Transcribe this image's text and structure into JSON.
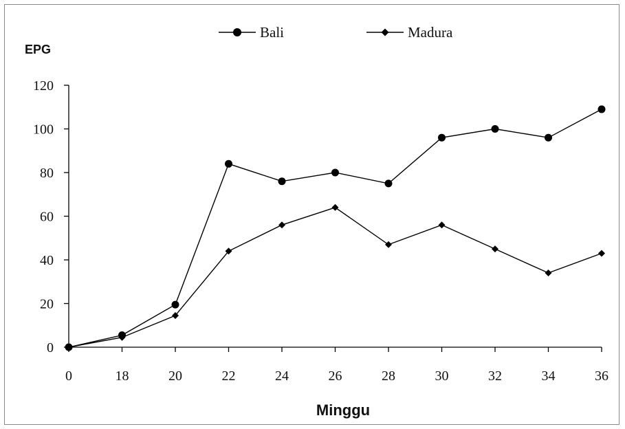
{
  "chart_data": {
    "type": "line",
    "title": "",
    "xlabel": "Minggu",
    "ylabel": "EPG",
    "categories": [
      "0",
      "18",
      "20",
      "22",
      "24",
      "26",
      "28",
      "30",
      "32",
      "34",
      "36"
    ],
    "ylim": [
      0,
      120
    ],
    "yticks": [
      0,
      20,
      40,
      60,
      80,
      100,
      120
    ],
    "grid": false,
    "legend_position": "top",
    "series": [
      {
        "name": "Bali",
        "marker": "circle",
        "color": "#000000",
        "values": [
          0,
          5.5,
          19.5,
          84,
          76,
          80,
          75,
          96,
          100,
          96,
          109
        ]
      },
      {
        "name": "Madura",
        "marker": "diamond",
        "color": "#000000",
        "values": [
          0,
          4.5,
          14.5,
          44,
          56,
          64,
          47,
          56,
          45,
          34,
          43
        ]
      }
    ]
  }
}
